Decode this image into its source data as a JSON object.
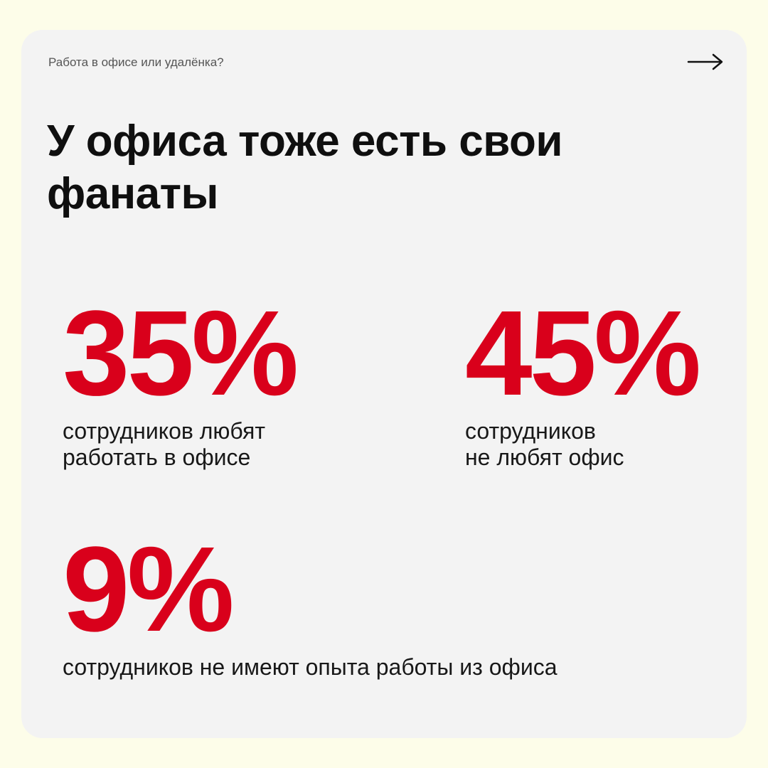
{
  "header": {
    "kicker": "Работа в офисе или удалёнка?",
    "next_icon": "arrow-right-icon"
  },
  "title": "У офиса тоже есть свои фанаты",
  "stats": [
    {
      "value": "35%",
      "description": "сотрудников любят\nработать в офисе"
    },
    {
      "value": "45%",
      "description": "сотрудников\nне любят офис"
    },
    {
      "value": "9%",
      "description": "сотрудников не имеют опыта работы из офиса"
    }
  ],
  "colors": {
    "page_background": "#fdfde9",
    "card_background": "#f3f3f3",
    "accent": "#d9001b",
    "text": "#0f0f0f"
  }
}
